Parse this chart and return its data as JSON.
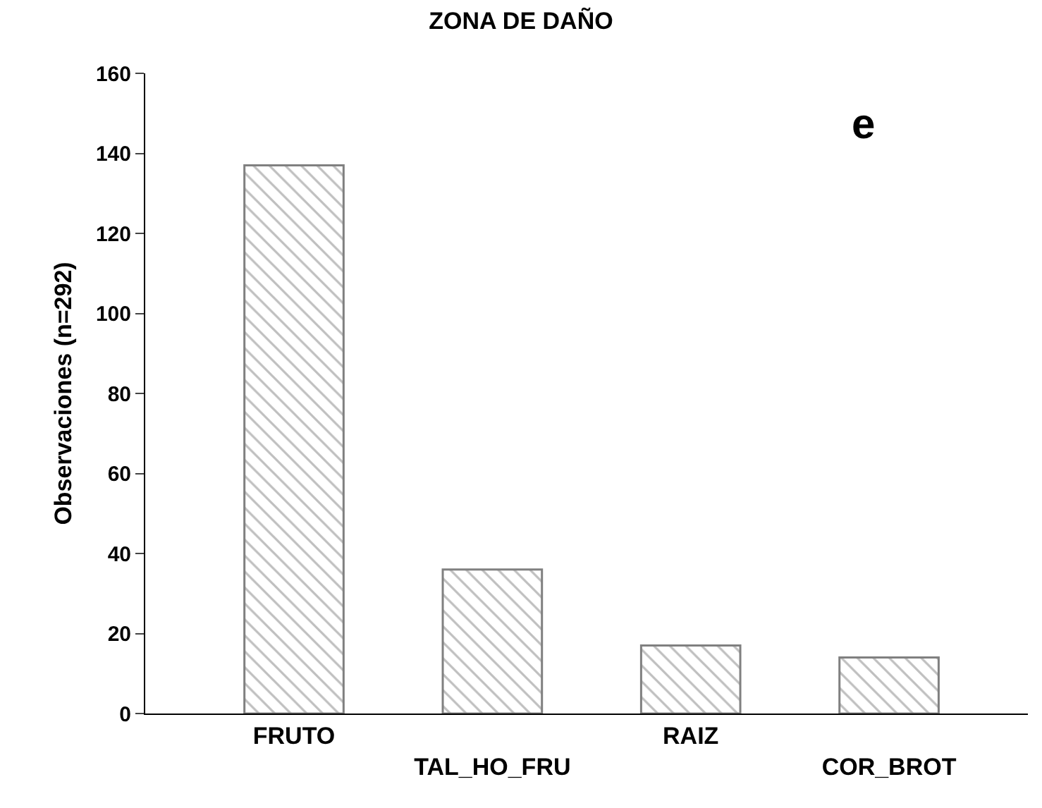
{
  "chart_data": {
    "type": "bar",
    "title": "ZONA DE DAÑO",
    "ylabel": "Observaciones (n=292)",
    "categories": [
      "FRUTO",
      "TAL_HO_FRU",
      "RAIZ",
      "COR_BROT"
    ],
    "values": [
      137,
      36,
      17,
      14
    ],
    "color": "#808080",
    "ylim": [
      0,
      160
    ],
    "yticks": [
      0,
      20,
      40,
      60,
      80,
      100,
      120,
      140,
      160
    ],
    "legend": false,
    "annotations": [
      "e"
    ]
  }
}
